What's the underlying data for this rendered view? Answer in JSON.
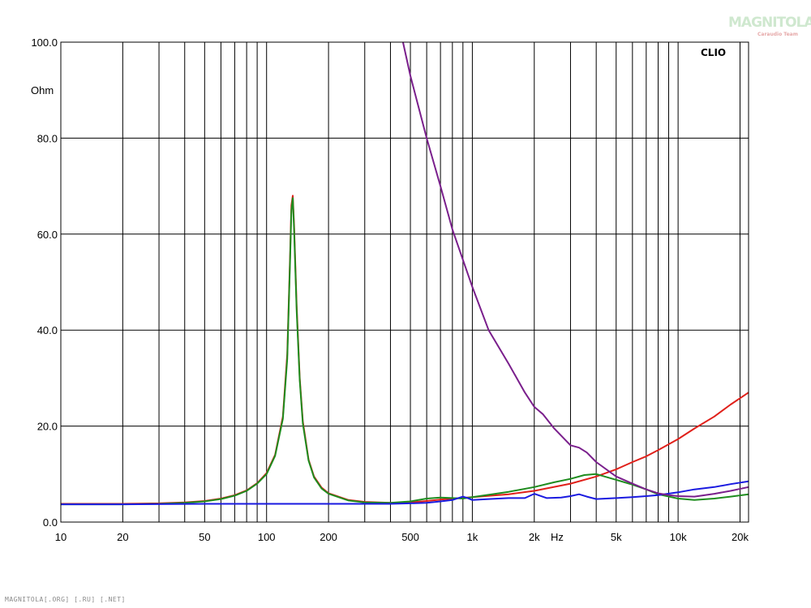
{
  "watermark": {
    "brand": "MAGNITOLA",
    "sub": "Caraudio Team"
  },
  "footer": {
    "text": "MAGNITOLA[.ORG] [.RU] [.NET]"
  },
  "chart_data": {
    "type": "line",
    "title": "",
    "brand_label": "CLIO",
    "ylabel": "Ohm",
    "xlabel": "Hz",
    "x_scale": "log",
    "xlim": [
      10,
      22000
    ],
    "ylim": [
      0,
      100
    ],
    "grid": true,
    "y_ticks": [
      {
        "value": 0,
        "label": "0.0"
      },
      {
        "value": 20,
        "label": "20.0"
      },
      {
        "value": 40,
        "label": "40.0"
      },
      {
        "value": 60,
        "label": "60.0"
      },
      {
        "value": 80,
        "label": "80.0"
      },
      {
        "value": 100,
        "label": "100.0"
      }
    ],
    "x_ticks": [
      {
        "value": 10,
        "label": "10"
      },
      {
        "value": 20,
        "label": "20"
      },
      {
        "value": 50,
        "label": "50"
      },
      {
        "value": 100,
        "label": "100"
      },
      {
        "value": 200,
        "label": "200"
      },
      {
        "value": 500,
        "label": "500"
      },
      {
        "value": 1000,
        "label": "1k"
      },
      {
        "value": 2000,
        "label": "2k"
      },
      {
        "value": 5000,
        "label": "5k"
      },
      {
        "value": 10000,
        "label": "10k"
      },
      {
        "value": 20000,
        "label": "20k"
      }
    ],
    "x_gridlines": [
      10,
      20,
      30,
      40,
      50,
      60,
      70,
      80,
      90,
      100,
      200,
      300,
      400,
      500,
      600,
      700,
      800,
      900,
      1000,
      2000,
      3000,
      4000,
      5000,
      6000,
      7000,
      8000,
      9000,
      10000,
      20000
    ],
    "series": [
      {
        "color": "#e0201a",
        "points": [
          [
            10,
            3.8
          ],
          [
            20,
            3.8
          ],
          [
            30,
            3.9
          ],
          [
            40,
            4.1
          ],
          [
            50,
            4.4
          ],
          [
            60,
            4.9
          ],
          [
            70,
            5.6
          ],
          [
            80,
            6.6
          ],
          [
            90,
            8.1
          ],
          [
            100,
            10.2
          ],
          [
            110,
            14.0
          ],
          [
            120,
            22.0
          ],
          [
            126,
            35.0
          ],
          [
            130,
            55.0
          ],
          [
            132,
            66.0
          ],
          [
            134,
            68.0
          ],
          [
            136,
            62.0
          ],
          [
            140,
            45.0
          ],
          [
            145,
            30.0
          ],
          [
            150,
            21.0
          ],
          [
            160,
            13.0
          ],
          [
            170,
            9.5
          ],
          [
            185,
            7.2
          ],
          [
            200,
            6.0
          ],
          [
            250,
            4.6
          ],
          [
            300,
            4.2
          ],
          [
            400,
            4.0
          ],
          [
            500,
            4.1
          ],
          [
            600,
            4.4
          ],
          [
            700,
            4.7
          ],
          [
            800,
            4.9
          ],
          [
            1000,
            5.2
          ],
          [
            1500,
            5.8
          ],
          [
            2000,
            6.5
          ],
          [
            3000,
            8.0
          ],
          [
            4000,
            9.5
          ],
          [
            5000,
            11.0
          ],
          [
            6000,
            12.5
          ],
          [
            7000,
            13.7
          ],
          [
            8000,
            15.0
          ],
          [
            10000,
            17.3
          ],
          [
            12000,
            19.5
          ],
          [
            15000,
            22.0
          ],
          [
            18000,
            24.5
          ],
          [
            22000,
            27.0
          ]
        ]
      },
      {
        "color": "#1e8c1e",
        "points": [
          [
            10,
            3.7
          ],
          [
            20,
            3.7
          ],
          [
            30,
            3.8
          ],
          [
            40,
            4.0
          ],
          [
            50,
            4.3
          ],
          [
            60,
            4.8
          ],
          [
            70,
            5.5
          ],
          [
            80,
            6.5
          ],
          [
            90,
            8.0
          ],
          [
            100,
            10.0
          ],
          [
            110,
            13.8
          ],
          [
            120,
            21.5
          ],
          [
            126,
            34.0
          ],
          [
            130,
            54.0
          ],
          [
            132,
            65.0
          ],
          [
            134,
            67.5
          ],
          [
            136,
            61.0
          ],
          [
            140,
            44.0
          ],
          [
            145,
            29.5
          ],
          [
            150,
            20.5
          ],
          [
            160,
            12.8
          ],
          [
            170,
            9.3
          ],
          [
            185,
            7.0
          ],
          [
            200,
            5.9
          ],
          [
            250,
            4.5
          ],
          [
            300,
            4.1
          ],
          [
            400,
            4.0
          ],
          [
            500,
            4.3
          ],
          [
            600,
            4.9
          ],
          [
            700,
            5.1
          ],
          [
            800,
            5.0
          ],
          [
            900,
            4.9
          ],
          [
            1000,
            5.2
          ],
          [
            1500,
            6.3
          ],
          [
            2000,
            7.3
          ],
          [
            2500,
            8.3
          ],
          [
            3000,
            9.0
          ],
          [
            3500,
            9.8
          ],
          [
            4000,
            10.0
          ],
          [
            5000,
            8.8
          ],
          [
            6000,
            7.8
          ],
          [
            7000,
            6.8
          ],
          [
            8000,
            5.8
          ],
          [
            10000,
            4.9
          ],
          [
            12000,
            4.6
          ],
          [
            15000,
            4.9
          ],
          [
            18000,
            5.3
          ],
          [
            22000,
            5.8
          ]
        ]
      },
      {
        "color": "#1a1ae0",
        "points": [
          [
            10,
            3.7
          ],
          [
            20,
            3.7
          ],
          [
            50,
            3.8
          ],
          [
            100,
            3.8
          ],
          [
            200,
            3.8
          ],
          [
            400,
            3.8
          ],
          [
            500,
            3.9
          ],
          [
            600,
            4.0
          ],
          [
            700,
            4.3
          ],
          [
            800,
            4.6
          ],
          [
            900,
            5.3
          ],
          [
            950,
            5.0
          ],
          [
            1000,
            4.6
          ],
          [
            1200,
            4.8
          ],
          [
            1500,
            5.0
          ],
          [
            1800,
            5.0
          ],
          [
            2000,
            5.9
          ],
          [
            2300,
            5.0
          ],
          [
            2700,
            5.1
          ],
          [
            3000,
            5.4
          ],
          [
            3300,
            5.8
          ],
          [
            3600,
            5.3
          ],
          [
            4000,
            4.8
          ],
          [
            5000,
            5.0
          ],
          [
            6000,
            5.2
          ],
          [
            7000,
            5.4
          ],
          [
            8000,
            5.6
          ],
          [
            10000,
            6.2
          ],
          [
            12000,
            6.8
          ],
          [
            15000,
            7.3
          ],
          [
            18000,
            7.9
          ],
          [
            22000,
            8.5
          ]
        ]
      },
      {
        "color": "#7a1f8c",
        "points": [
          [
            460,
            100
          ],
          [
            500,
            93
          ],
          [
            600,
            80
          ],
          [
            700,
            70
          ],
          [
            800,
            61
          ],
          [
            1000,
            49
          ],
          [
            1200,
            40
          ],
          [
            1500,
            33
          ],
          [
            1800,
            27
          ],
          [
            2000,
            24
          ],
          [
            2200,
            22.5
          ],
          [
            2500,
            19.5
          ],
          [
            3000,
            16.0
          ],
          [
            3300,
            15.5
          ],
          [
            3600,
            14.5
          ],
          [
            4000,
            12.5
          ],
          [
            5000,
            9.5
          ],
          [
            6000,
            8.0
          ],
          [
            7000,
            6.8
          ],
          [
            8000,
            6.0
          ],
          [
            9000,
            5.6
          ],
          [
            10000,
            5.4
          ],
          [
            12000,
            5.3
          ],
          [
            15000,
            5.9
          ],
          [
            18000,
            6.5
          ],
          [
            22000,
            7.3
          ]
        ]
      }
    ]
  }
}
